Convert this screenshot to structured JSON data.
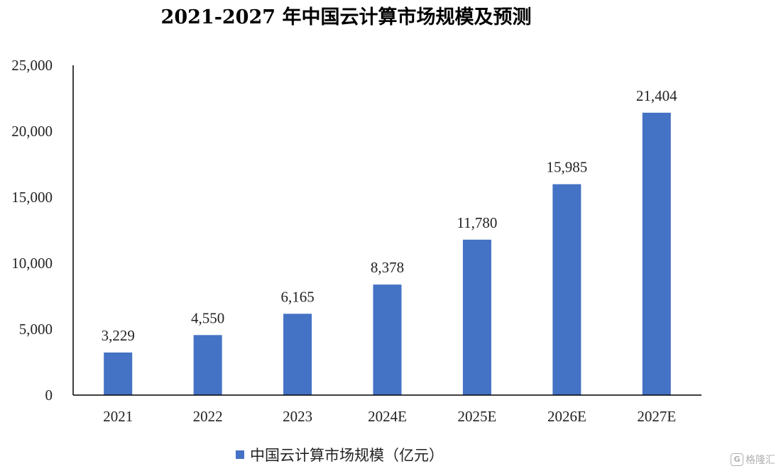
{
  "chart_data": {
    "type": "bar",
    "title": "2021-2027 年中国云计算市场规模及预测",
    "categories": [
      "2021",
      "2022",
      "2023",
      "2024E",
      "2025E",
      "2026E",
      "2027E"
    ],
    "series": [
      {
        "name": "中国云计算市场规模（亿元）",
        "color": "#4472c4",
        "values": [
          3229,
          4550,
          6165,
          8378,
          11780,
          15985,
          21404
        ]
      }
    ],
    "data_labels": [
      "3,229",
      "4,550",
      "6,165",
      "8,378",
      "11,780",
      "15,985",
      "21,404"
    ],
    "y_ticks": [
      "0",
      "5,000",
      "10,000",
      "15,000",
      "20,000",
      "25,000"
    ],
    "ylim": [
      0,
      25000
    ],
    "xlabel": "",
    "ylabel": "",
    "grid": false,
    "legend": "bottom"
  },
  "watermark": {
    "text": "格隆汇",
    "icon": "gelonghui-logo-icon"
  }
}
